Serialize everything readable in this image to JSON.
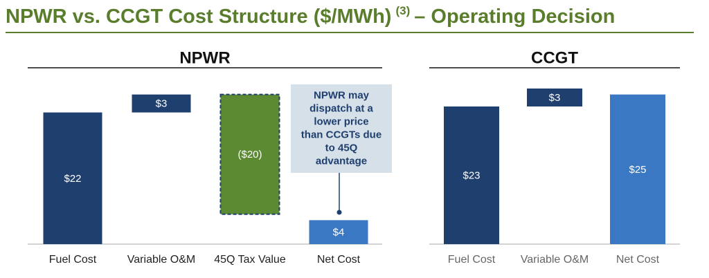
{
  "title": "NPWR vs. CCGT Cost Structure ($/MWh)",
  "title_note": "(3)",
  "title_end": "– Operating Decision",
  "chart_data": [
    {
      "type": "waterfall",
      "title": "NPWR",
      "categories": [
        "Fuel Cost",
        "Variable O&M",
        "45Q Tax Value",
        "Net Cost"
      ],
      "values": [
        22,
        3,
        -20,
        4
      ],
      "value_labels": [
        "$22",
        "$3",
        "($20)",
        "$4"
      ],
      "measure": [
        "relative",
        "relative",
        "relative",
        "total"
      ],
      "colors": [
        "#1f3f6e",
        "#1f3f6e",
        "#5b8a32",
        "#3a78c4"
      ],
      "label_color": "#222222",
      "annotation": "NPWR may dispatch at a lower price than CCGTs due to 45Q advantage"
    },
    {
      "type": "waterfall",
      "title": "CCGT",
      "categories": [
        "Fuel Cost",
        "Variable O&M",
        "Net Cost"
      ],
      "values": [
        23,
        3,
        25
      ],
      "value_labels": [
        "$23",
        "$3",
        "$25"
      ],
      "measure": [
        "relative",
        "relative",
        "total"
      ],
      "colors": [
        "#1f3f6e",
        "#1f3f6e",
        "#3a78c4"
      ],
      "label_color": "#666666"
    }
  ]
}
